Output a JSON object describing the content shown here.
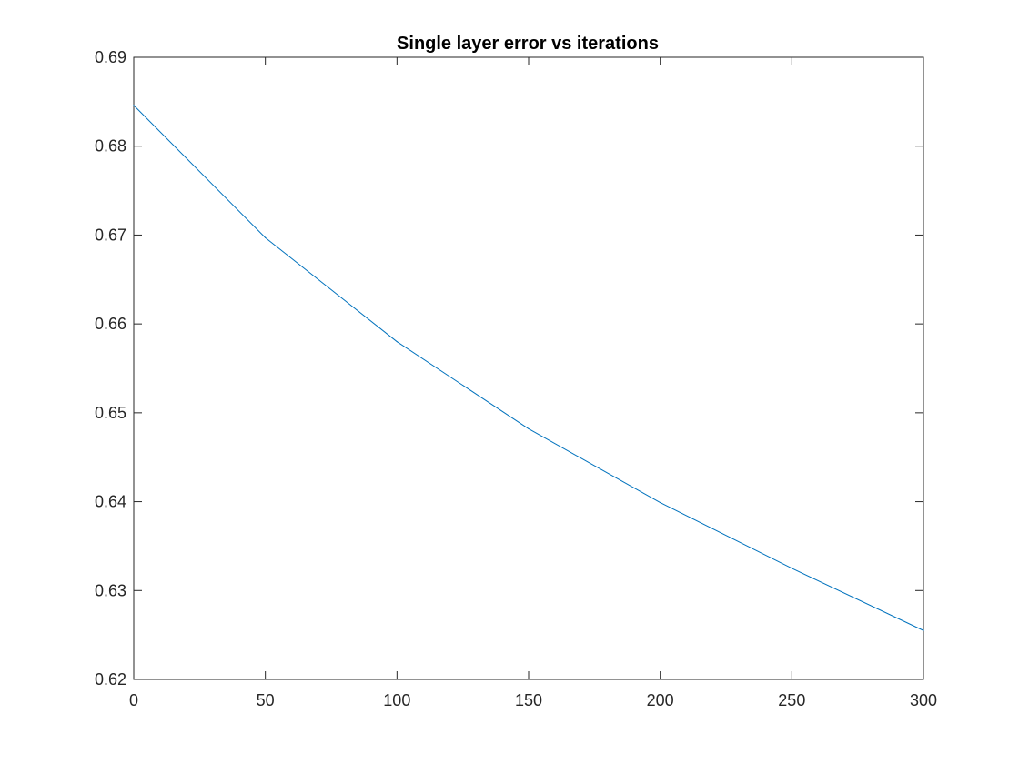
{
  "chart_data": {
    "type": "line",
    "title": "Single layer error vs iterations",
    "xlabel": "",
    "ylabel": "",
    "xlim": [
      0,
      300
    ],
    "ylim": [
      0.62,
      0.69
    ],
    "xticks": [
      0,
      50,
      100,
      150,
      200,
      250,
      300
    ],
    "yticks": [
      0.62,
      0.63,
      0.64,
      0.65,
      0.66,
      0.67,
      0.68,
      0.69
    ],
    "xtick_labels": [
      "0",
      "50",
      "100",
      "150",
      "200",
      "250",
      "300"
    ],
    "ytick_labels": [
      "0.62",
      "0.63",
      "0.64",
      "0.65",
      "0.66",
      "0.67",
      "0.68",
      "0.69"
    ],
    "grid": false,
    "legend": "none",
    "series": [
      {
        "color": "#0072BD",
        "x": [
          0,
          50,
          100,
          150,
          200,
          250,
          300
        ],
        "y": [
          0.6846,
          0.6697,
          0.658,
          0.6482,
          0.6399,
          0.6325,
          0.6255
        ]
      }
    ]
  }
}
